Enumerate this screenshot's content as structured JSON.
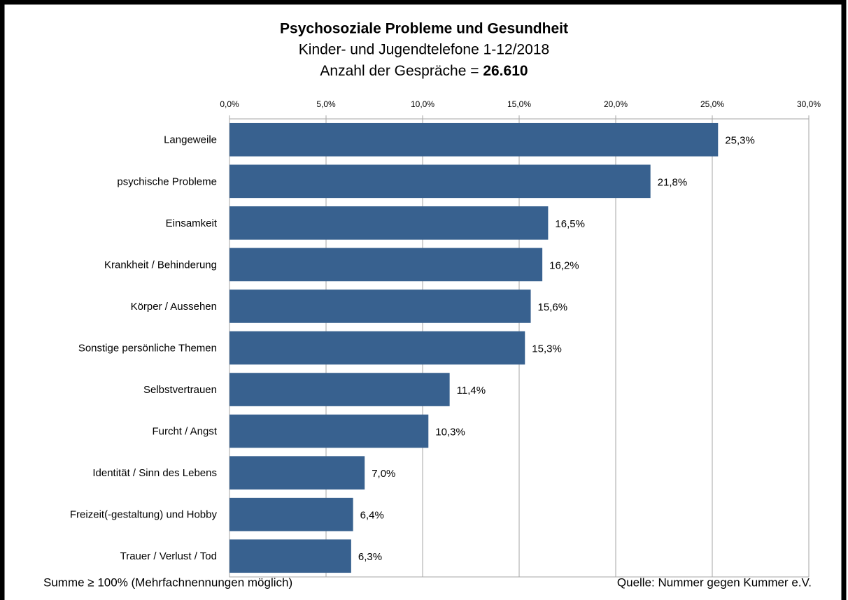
{
  "chart_data": {
    "type": "bar",
    "orientation": "horizontal",
    "title": "Psychosoziale Probleme und Gesundheit",
    "subtitle": "Kinder- und Jugendtelefone 1-12/2018",
    "count_label": "Anzahl der Gespräche =",
    "count": "26.610",
    "categories": [
      "Langeweile",
      "psychische Probleme",
      "Einsamkeit",
      "Krankheit / Behinderung",
      "Körper / Aussehen",
      "Sonstige persönliche Themen",
      "Selbstvertrauen",
      "Furcht / Angst",
      "Identität / Sinn des Lebens",
      "Freizeit(-gestaltung) und Hobby",
      "Trauer / Verlust / Tod"
    ],
    "values": [
      25.3,
      21.8,
      16.5,
      16.2,
      15.6,
      15.3,
      11.4,
      10.3,
      7.0,
      6.4,
      6.3
    ],
    "value_labels": [
      "25,3%",
      "21,8%",
      "16,5%",
      "16,2%",
      "15,6%",
      "15,3%",
      "11,4%",
      "10,3%",
      "7,0%",
      "6,4%",
      "6,3%"
    ],
    "color": "#38618f",
    "xlim": [
      0,
      30
    ],
    "xticks": [
      {
        "value": 0,
        "label": "0,0%"
      },
      {
        "value": 5,
        "label": "5,0%"
      },
      {
        "value": 10,
        "label": "10,0%"
      },
      {
        "value": 15,
        "label": "15,0%"
      },
      {
        "value": 20,
        "label": "20,0%"
      },
      {
        "value": 25,
        "label": "25,0%"
      },
      {
        "value": 30,
        "label": "30,0%"
      }
    ],
    "grid": true,
    "footnote": "Summe ≥ 100% (Mehrfachnennungen möglich)",
    "source": "Quelle: Nummer gegen Kummer e.V."
  }
}
